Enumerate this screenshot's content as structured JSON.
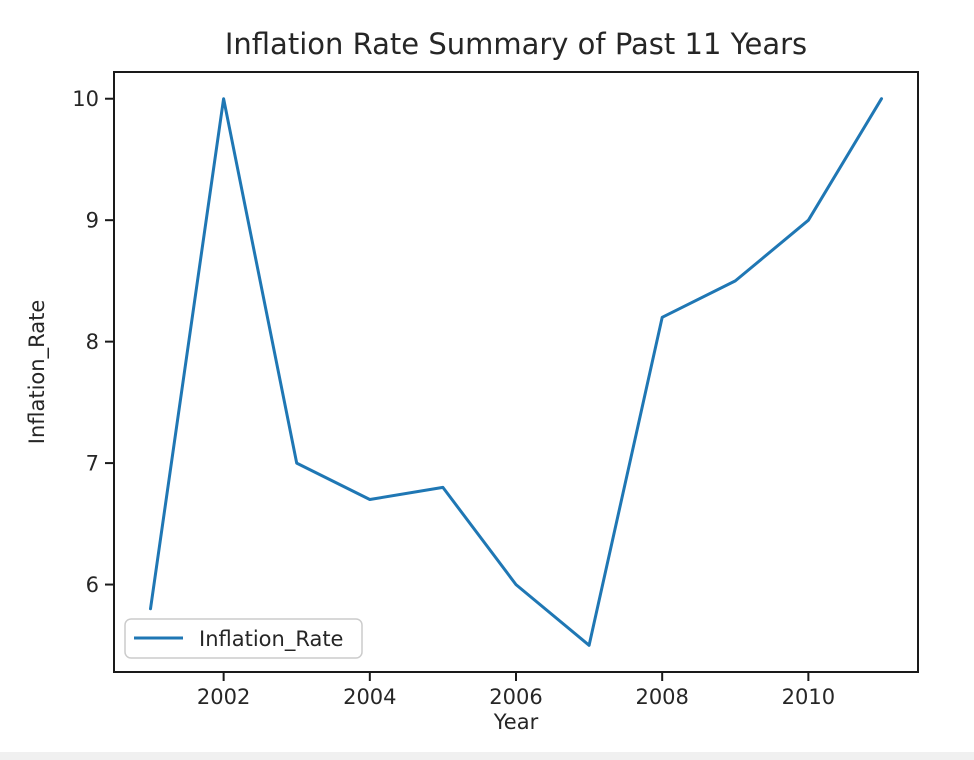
{
  "chart_data": {
    "type": "line",
    "title": "Inflation Rate Summary of Past 11 Years",
    "xlabel": "Year",
    "ylabel": "Inflation_Rate",
    "legend": {
      "label": "Inflation_Rate",
      "position": "lower left"
    },
    "x": [
      2001,
      2002,
      2003,
      2004,
      2005,
      2006,
      2007,
      2008,
      2009,
      2010,
      2011
    ],
    "series": [
      {
        "name": "Inflation_Rate",
        "values": [
          5.8,
          10.0,
          7.0,
          6.7,
          6.8,
          6.0,
          5.5,
          8.2,
          8.5,
          9.0,
          10.0
        ],
        "color": "#1f77b4"
      }
    ],
    "xticks": [
      2002,
      2004,
      2006,
      2008,
      2010
    ],
    "yticks": [
      6,
      7,
      8,
      9,
      10
    ],
    "xlim": [
      2000.5,
      2011.5
    ],
    "ylim": [
      5.28,
      10.22
    ],
    "grid": false,
    "colors": {
      "line": "#1f77b4",
      "spine": "#1a1a1a",
      "text": "#262626",
      "legend_border": "#cccccc",
      "legend_fill": "#ffffff",
      "background": "#ffffff"
    }
  }
}
